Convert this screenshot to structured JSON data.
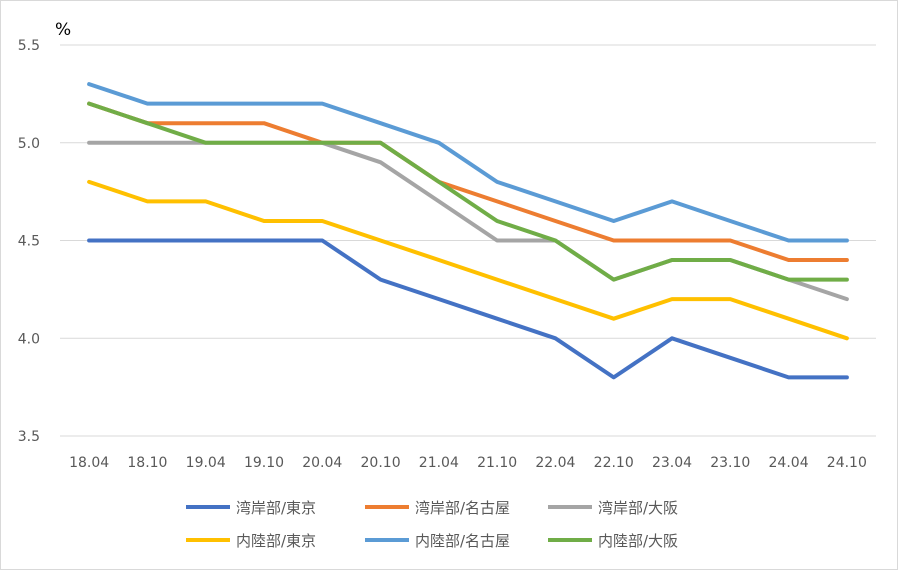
{
  "chart_data": {
    "type": "line",
    "unit_label": "%",
    "categories": [
      "18.04",
      "18.10",
      "19.04",
      "19.10",
      "20.04",
      "20.10",
      "21.04",
      "21.10",
      "22.04",
      "22.10",
      "23.04",
      "23.10",
      "24.04",
      "24.10"
    ],
    "ylim": [
      3.5,
      5.5
    ],
    "yticks": [
      "5.5",
      "5.0",
      "4.5",
      "4.0",
      "3.5"
    ],
    "ytick_values": [
      5.5,
      5.0,
      4.5,
      4.0,
      3.5
    ],
    "grid": true,
    "legend_position": "bottom",
    "series": [
      {
        "name": "湾岸部/東京",
        "color": "#4472c4",
        "values": [
          4.5,
          4.5,
          4.5,
          4.5,
          4.5,
          4.3,
          4.2,
          4.1,
          4.0,
          3.8,
          4.0,
          3.9,
          3.8,
          3.8
        ]
      },
      {
        "name": "湾岸部/名古屋",
        "color": "#ed7d31",
        "values": [
          5.2,
          5.1,
          5.1,
          5.1,
          5.0,
          5.0,
          4.8,
          4.7,
          4.6,
          4.5,
          4.5,
          4.5,
          4.4,
          4.4
        ]
      },
      {
        "name": "湾岸部/大阪",
        "color": "#a5a5a5",
        "values": [
          5.0,
          5.0,
          5.0,
          5.0,
          5.0,
          4.9,
          4.7,
          4.5,
          4.5,
          4.3,
          4.4,
          4.4,
          4.3,
          4.2
        ]
      },
      {
        "name": "内陸部/東京",
        "color": "#ffc000",
        "values": [
          4.8,
          4.7,
          4.7,
          4.6,
          4.6,
          4.5,
          4.4,
          4.3,
          4.2,
          4.1,
          4.2,
          4.2,
          4.1,
          4.0
        ]
      },
      {
        "name": "内陸部/名古屋",
        "color": "#5b9bd5",
        "values": [
          5.3,
          5.2,
          5.2,
          5.2,
          5.2,
          5.1,
          5.0,
          4.8,
          4.7,
          4.6,
          4.7,
          4.6,
          4.5,
          4.5
        ]
      },
      {
        "name": "内陸部/大阪",
        "color": "#70ad47",
        "values": [
          5.2,
          5.1,
          5.0,
          5.0,
          5.0,
          5.0,
          4.8,
          4.6,
          4.5,
          4.3,
          4.4,
          4.4,
          4.3,
          4.3
        ]
      }
    ]
  }
}
